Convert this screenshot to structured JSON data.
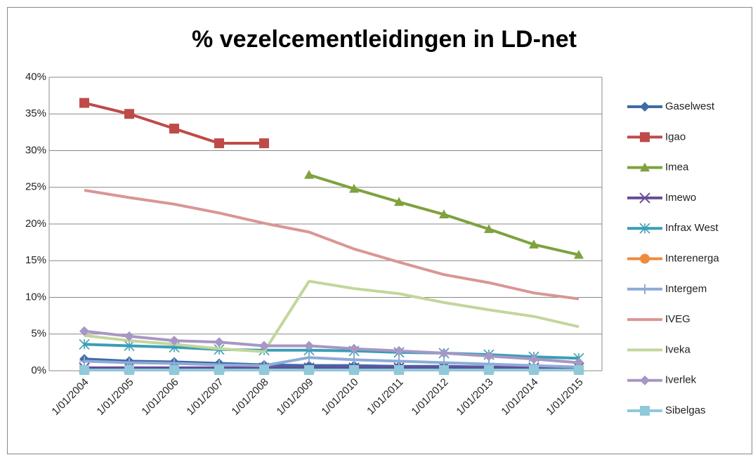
{
  "chart_data": {
    "type": "line",
    "title": "% vezelcementleidingen in LD-net",
    "categories": [
      "1/01/2004",
      "1/01/2005",
      "1/01/2006",
      "1/01/2007",
      "1/01/2008",
      "1/01/2009",
      "1/01/2010",
      "1/01/2011",
      "1/01/2012",
      "1/01/2013",
      "1/01/2014",
      "1/01/2015"
    ],
    "ylim": [
      0,
      40
    ],
    "yticks": [
      {
        "value": 0,
        "label": "0%"
      },
      {
        "value": 5,
        "label": "5%"
      },
      {
        "value": 10,
        "label": "10%"
      },
      {
        "value": 15,
        "label": "15%"
      },
      {
        "value": 20,
        "label": "20%"
      },
      {
        "value": 25,
        "label": "25%"
      },
      {
        "value": 30,
        "label": "30%"
      },
      {
        "value": 35,
        "label": "35%"
      },
      {
        "value": 40,
        "label": "40%"
      }
    ],
    "grid": true,
    "legend": "right",
    "series": [
      {
        "name": "Gaselwest",
        "color": "#3e6aa8",
        "marker": "diamond",
        "values": [
          1.6,
          1.3,
          1.2,
          1.0,
          0.8,
          0.7,
          0.7,
          0.6,
          0.6,
          0.5,
          0.4,
          0.3
        ]
      },
      {
        "name": "Igao",
        "color": "#be4b48",
        "marker": "square",
        "values": [
          36.5,
          35,
          33,
          31,
          31,
          null,
          null,
          null,
          null,
          null,
          null,
          null
        ]
      },
      {
        "name": "Imea",
        "color": "#7fa23e",
        "marker": "triangle",
        "values": [
          null,
          null,
          null,
          null,
          null,
          26.7,
          24.8,
          23.0,
          21.3,
          19.3,
          17.2,
          15.8
        ]
      },
      {
        "name": "Imewo",
        "color": "#6a4d96",
        "marker": "x",
        "values": [
          0.4,
          0.4,
          0.4,
          0.4,
          0.4,
          0.4,
          0.4,
          0.4,
          0.4,
          0.4,
          0.4,
          0.4
        ]
      },
      {
        "name": "Infrax West",
        "color": "#3a9eb7",
        "marker": "asterisk",
        "values": [
          3.6,
          3.4,
          3.2,
          2.9,
          2.8,
          2.8,
          2.7,
          2.5,
          2.4,
          2.2,
          1.9,
          1.7
        ]
      },
      {
        "name": "Interenerga",
        "color": "#f08a3c",
        "marker": "circle",
        "values": [
          null,
          null,
          null,
          null,
          null,
          null,
          null,
          null,
          null,
          null,
          null,
          null
        ]
      },
      {
        "name": "Intergem",
        "color": "#8eaad6",
        "marker": "plus",
        "values": [
          1.3,
          1.1,
          1.0,
          0.8,
          0.7,
          1.8,
          1.5,
          1.3,
          1.1,
          0.9,
          0.7,
          0.5
        ]
      },
      {
        "name": "IVEG",
        "color": "#d99694",
        "marker": "none",
        "values": [
          24.6,
          23.6,
          22.7,
          21.5,
          20.1,
          18.9,
          16.6,
          14.8,
          13.1,
          12.0,
          10.6,
          9.8
        ]
      },
      {
        "name": "Iveka",
        "color": "#c3d69b",
        "marker": "none",
        "values": [
          4.8,
          4.1,
          3.6,
          3.0,
          2.6,
          12.2,
          11.2,
          10.5,
          9.3,
          8.3,
          7.4,
          6.0
        ]
      },
      {
        "name": "Iverlek",
        "color": "#a896c4",
        "marker": "diamond",
        "values": [
          5.4,
          4.7,
          4.1,
          3.9,
          3.4,
          3.4,
          3.0,
          2.7,
          2.4,
          2.0,
          1.6,
          1.1
        ]
      },
      {
        "name": "Sibelgas",
        "color": "#8fc9da",
        "marker": "square",
        "values": [
          0.1,
          0.1,
          0.1,
          0.1,
          0.1,
          0.1,
          0.1,
          0.1,
          0.1,
          0.1,
          0.1,
          0.1
        ]
      }
    ]
  }
}
